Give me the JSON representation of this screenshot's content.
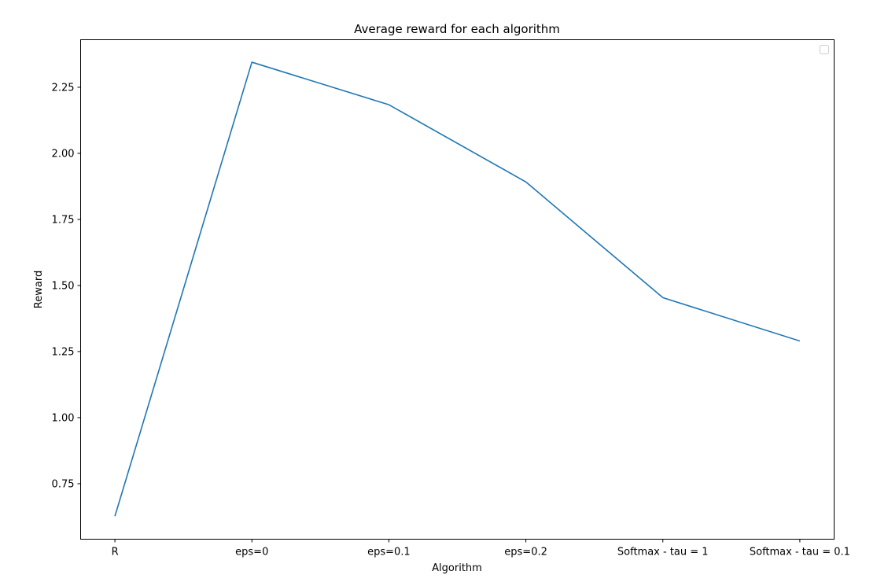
{
  "chart_data": {
    "type": "line",
    "title": "Average reward for each algorithm",
    "xlabel": "Algorithm",
    "ylabel": "Reward",
    "categories": [
      "R",
      "eps=0",
      "eps=0.1",
      "eps=0.2",
      "Softmax - tau = 1",
      "Softmax - tau = 0.1"
    ],
    "series": [
      {
        "values": [
          0.627,
          2.345,
          2.184,
          1.892,
          1.454,
          1.29
        ],
        "color": "#1f77b4"
      }
    ],
    "yticks": [
      "0.75",
      "1.00",
      "1.25",
      "1.50",
      "1.75",
      "2.00",
      "2.25"
    ],
    "ylim": [
      0.54,
      2.43
    ],
    "grid": false,
    "legend": {
      "placement": "upper-right",
      "entries": []
    }
  }
}
